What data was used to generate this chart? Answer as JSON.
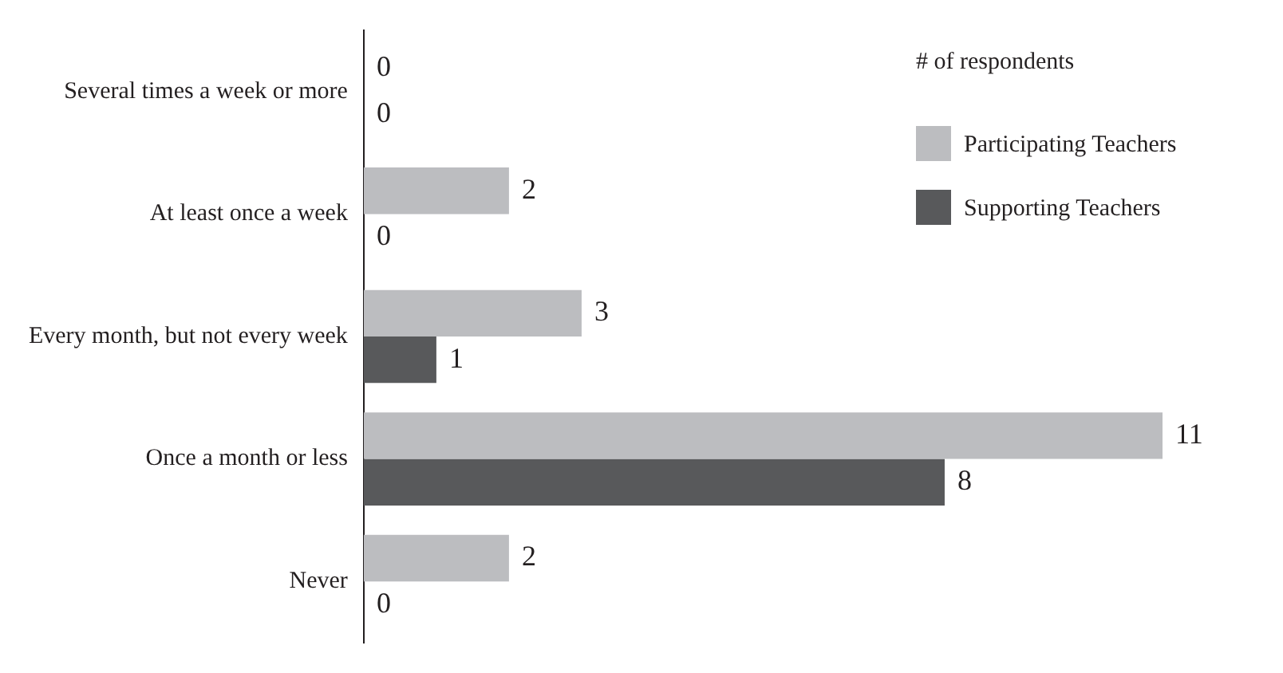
{
  "chart_data": {
    "type": "bar",
    "orientation": "horizontal",
    "legend_title": "# of respondents",
    "legend": "top right",
    "data_labels": true,
    "categories": [
      "Several times a week or more",
      "At least once a week",
      "Every month, but not every week",
      "Once a month or less",
      "Never"
    ],
    "series": [
      {
        "name": "Participating Teachers",
        "color": "#bcbdc0",
        "values": [
          0,
          2,
          3,
          11,
          2
        ]
      },
      {
        "name": "Supporting Teachers",
        "color": "#58595b",
        "values": [
          0,
          0,
          1,
          8,
          0
        ]
      }
    ]
  }
}
